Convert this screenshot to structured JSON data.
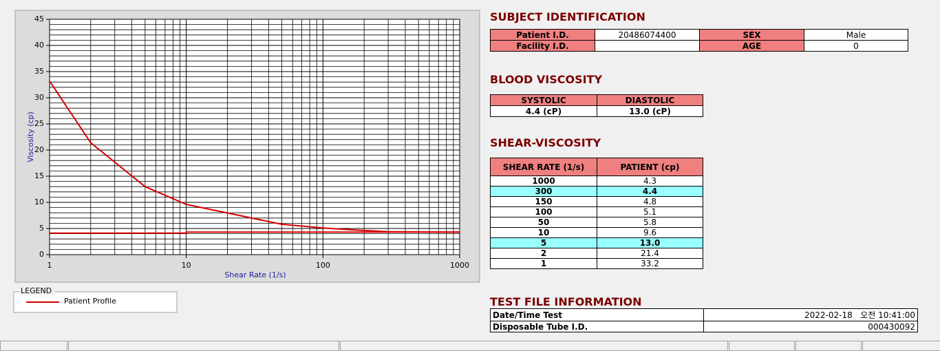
{
  "chart_data": {
    "type": "line",
    "x_label": "Shear Rate (1/s)",
    "y_label": "Viscosity (cp)",
    "xlim": [
      1,
      1000
    ],
    "ylim": [
      0,
      45
    ],
    "xticks": [
      1,
      10,
      100,
      1000
    ],
    "yticks": [
      0,
      5,
      10,
      15,
      20,
      25,
      30,
      35,
      40,
      45
    ],
    "log_x": true,
    "grid": true,
    "legend_title": "LEGEND",
    "series": [
      {
        "name": "Patient Profile",
        "color": "#d40000",
        "x": [
          1,
          2,
          5,
          10,
          50,
          100,
          150,
          300,
          1000
        ],
        "values": [
          33.2,
          21.4,
          13.0,
          9.6,
          5.8,
          5.1,
          4.8,
          4.4,
          4.3
        ]
      },
      {
        "color": "#d40000",
        "x": [
          1,
          10,
          10,
          1000
        ],
        "values": [
          4.1,
          4.1,
          4.3,
          4.3
        ]
      }
    ]
  },
  "subject": {
    "title": "SUBJECT IDENTIFICATION",
    "fields": [
      {
        "label": "Patient I.D.",
        "value": "20486074400"
      },
      {
        "label": "SEX",
        "value": "Male"
      },
      {
        "label": "Facility I.D."
      },
      {
        "label": "AGE",
        "value": "0"
      }
    ]
  },
  "blood": {
    "title": "BLOOD VISCOSITY",
    "headers": [
      "SYSTOLIC",
      "DIASTOLIC"
    ],
    "values": [
      "4.4 (cP)",
      "13.0 (cP)"
    ]
  },
  "shear": {
    "title": "SHEAR-VISCOSITY",
    "headers": [
      "SHEAR RATE (1/s)",
      "PATIENT (cp)"
    ],
    "rows": [
      [
        "1000",
        "4.3"
      ],
      [
        "300",
        "4.4"
      ],
      [
        "150",
        "4.8"
      ],
      [
        "100",
        "5.1"
      ],
      [
        "50",
        "5.8"
      ],
      [
        "10",
        "9.6"
      ],
      [
        "5",
        "13.0"
      ],
      [
        "2",
        "21.4"
      ],
      [
        "1",
        "33.2"
      ]
    ]
  },
  "test_file": {
    "title": "TEST FILE INFORMATION",
    "rows": [
      {
        "label": "Date/Time Test",
        "date": "2022-02-18",
        "time": "오전 10:41:00"
      },
      {
        "label": "Disposable Tube I.D.",
        "value": "000430092"
      }
    ]
  }
}
